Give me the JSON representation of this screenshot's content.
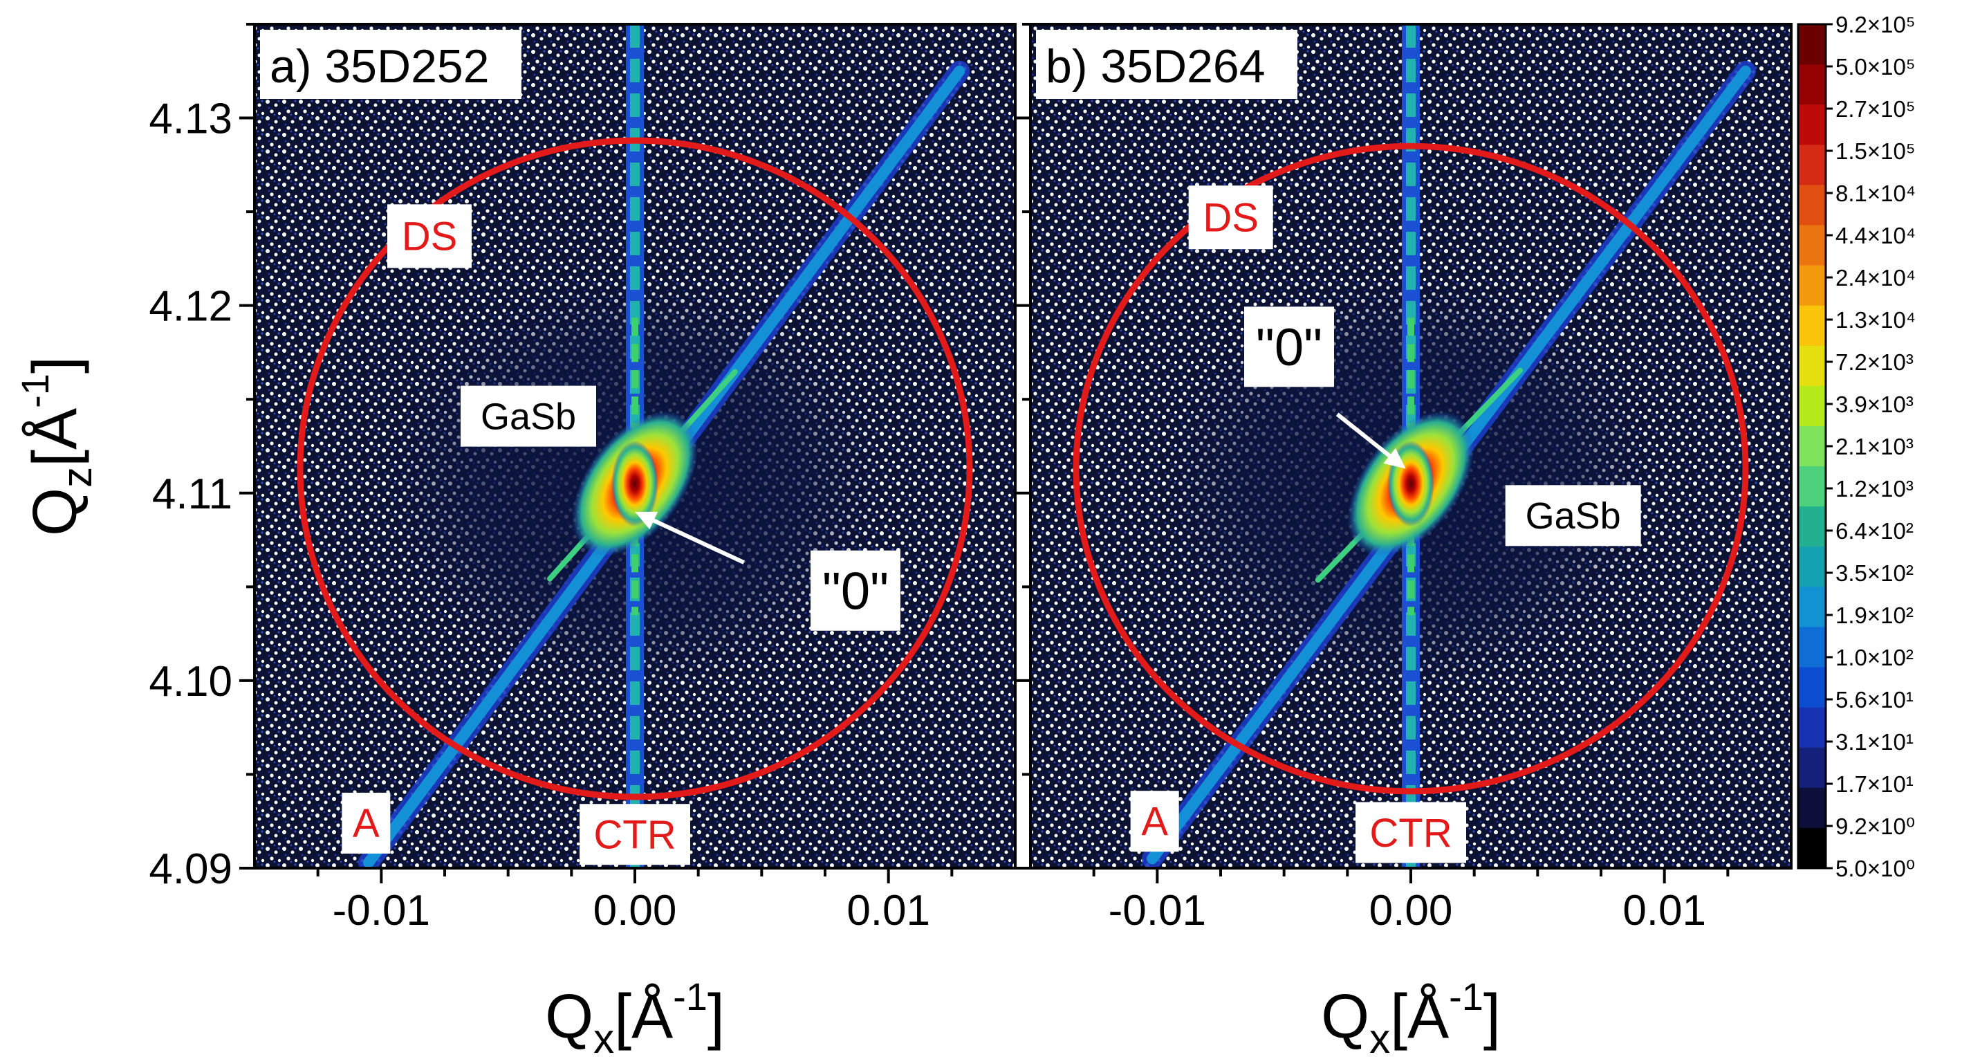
{
  "chart_data": [
    {
      "type": "heatmap",
      "panel_label": "a) 35D252",
      "xlabel_base": "Q",
      "xlabel_sub": "x",
      "xlabel_unit": "[Å",
      "xlabel_exp": "-1",
      "xlabel_close": "]",
      "ylabel_base": "Q",
      "ylabel_sub": "z",
      "ylabel_unit": "[Å",
      "ylabel_exp": "-1",
      "ylabel_close": "]",
      "xlim": [
        -0.015,
        0.015
      ],
      "ylim": [
        4.09,
        4.135
      ],
      "xticks": [
        -0.01,
        0.0,
        0.01
      ],
      "xtick_labels": [
        "-0.01",
        "0.00",
        "0.01"
      ],
      "yticks": [
        4.09,
        4.1,
        4.11,
        4.12,
        4.13
      ],
      "ytick_labels": [
        "4.09",
        "4.10",
        "4.11",
        "4.12",
        "4.13"
      ],
      "peak": {
        "qx": 0.0,
        "qz": 4.1105
      },
      "analyzer_streak": {
        "x1": -0.0105,
        "y1": 4.0903,
        "x2": 0.0128,
        "y2": 4.1325
      },
      "ctr_qx": 0.0,
      "circle": {
        "cx": 0.0,
        "cy": 4.1113,
        "rx": 0.0132,
        "ry": 0.0175
      },
      "annotations": {
        "ds": {
          "text": "DS",
          "qx": -0.0081,
          "qz": 4.1237
        },
        "a": {
          "text": "A",
          "qx": -0.0106,
          "qz": 4.0924
        },
        "ctr": {
          "text": "CTR",
          "qx": 0.0,
          "qz": 4.0918
        },
        "gasb": {
          "text": "GaSb",
          "qx": -0.0042,
          "qz": 4.1141
        },
        "zero": {
          "text": "\"0\"",
          "qx": 0.0087,
          "qz": 4.1048
        }
      },
      "arrow": {
        "from_qx": 0.0043,
        "from_qz": 4.1063,
        "to_qx": 0.0,
        "to_qz": 4.109
      }
    },
    {
      "type": "heatmap",
      "panel_label": "b) 35D264",
      "xlabel_base": "Q",
      "xlabel_sub": "x",
      "xlabel_unit": "[Å",
      "xlabel_exp": "-1",
      "xlabel_close": "]",
      "xlim": [
        -0.015,
        0.015
      ],
      "ylim": [
        4.09,
        4.135
      ],
      "xticks": [
        -0.01,
        0.0,
        0.01
      ],
      "xtick_labels": [
        "-0.01",
        "0.00",
        "0.01"
      ],
      "yticks": [
        4.09,
        4.1,
        4.11,
        4.12,
        4.13
      ],
      "peak": {
        "qx": 0.0,
        "qz": 4.1105
      },
      "analyzer_streak": {
        "x1": -0.0102,
        "y1": 4.0905,
        "x2": 0.0132,
        "y2": 4.1325
      },
      "ctr_qx": 0.0,
      "circle": {
        "cx": 0.0,
        "cy": 4.1113,
        "rx": 0.0132,
        "ry": 0.0172
      },
      "annotations": {
        "ds": {
          "text": "DS",
          "qx": -0.0071,
          "qz": 4.1247
        },
        "a": {
          "text": "A",
          "qx": -0.0101,
          "qz": 4.0925
        },
        "ctr": {
          "text": "CTR",
          "qx": 0.0,
          "qz": 4.0919
        },
        "gasb": {
          "text": "GaSb",
          "qx": 0.0064,
          "qz": 4.1088
        },
        "zero": {
          "text": "\"0\"",
          "qx": -0.0048,
          "qz": 4.1178
        }
      },
      "arrow": {
        "from_qx": -0.0029,
        "from_qz": 4.1142,
        "to_qx": -0.0002,
        "to_qz": 4.1113
      }
    }
  ],
  "colorbar": {
    "labels": [
      "9.2×10⁵",
      "5.0×10⁵",
      "2.7×10⁵",
      "1.5×10⁵",
      "8.1×10⁴",
      "4.4×10⁴",
      "2.4×10⁴",
      "1.3×10⁴",
      "7.2×10³",
      "3.9×10³",
      "2.1×10³",
      "1.2×10³",
      "6.4×10²",
      "3.5×10²",
      "1.9×10²",
      "1.0×10²",
      "5.6×10¹",
      "3.1×10¹",
      "1.7×10¹",
      "9.2×10⁰",
      "5.0×10⁰"
    ],
    "colors": [
      "#6b0000",
      "#950000",
      "#bf0a0a",
      "#d52a14",
      "#e04e12",
      "#ea7410",
      "#f29a0c",
      "#fac40a",
      "#e6df10",
      "#b4ea1a",
      "#7ee25a",
      "#4cd07c",
      "#22b090",
      "#14a2b0",
      "#1292d2",
      "#0f6ed6",
      "#0b4ed2",
      "#1632b2",
      "#15207a",
      "#0b0f3a",
      "#000000"
    ]
  }
}
